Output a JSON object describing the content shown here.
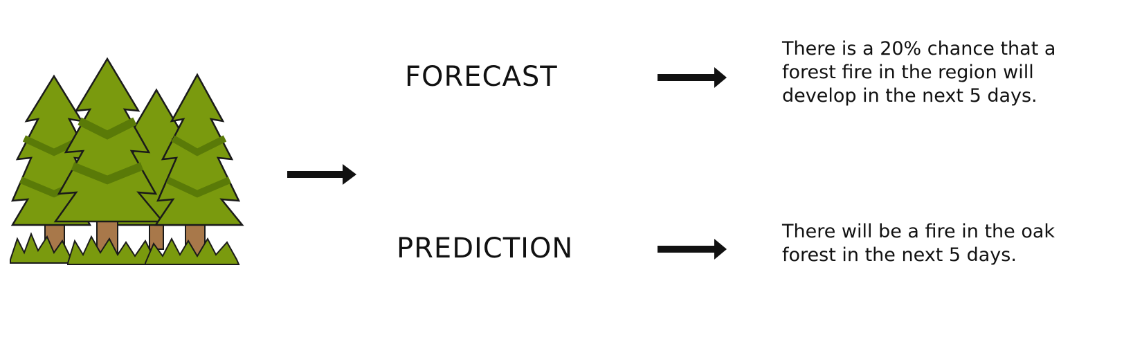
{
  "forecast": {
    "label": "FORECAST",
    "description_lines": [
      "There is a 20% chance that a",
      "forest fire in the region will",
      "develop in the next 5 days."
    ]
  },
  "prediction": {
    "label": "PREDICTION",
    "description_lines": [
      "There will be a fire in the oak",
      "forest in the next 5 days."
    ]
  },
  "icons": {
    "forest": "pine-forest-icon",
    "arrow": "right-arrow-icon"
  },
  "colors": {
    "tree_light": "#7a9a0e",
    "tree_dark": "#5a7a08",
    "trunk": "#a8784a",
    "outline": "#1a1a1a",
    "text": "#111111"
  }
}
